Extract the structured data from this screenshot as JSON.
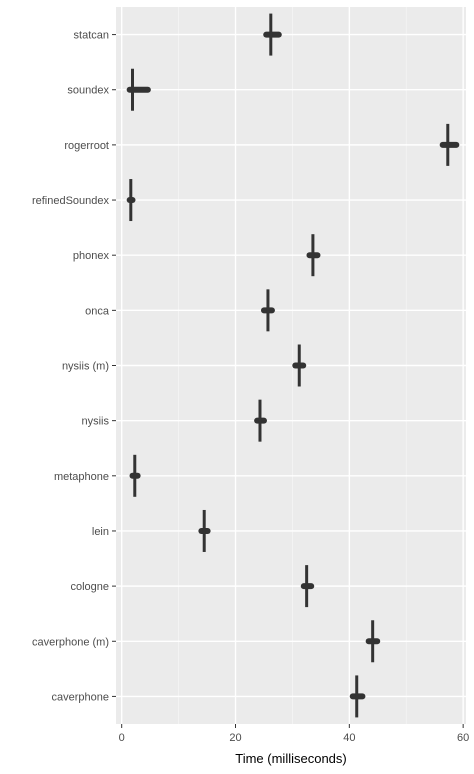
{
  "chart_data": {
    "type": "boxplot",
    "title": "",
    "xlabel": "Time (milliseconds)",
    "ylabel": "",
    "xlim": [
      -1,
      60.5
    ],
    "x_ticks": [
      0,
      20,
      40,
      60
    ],
    "x_tick_labels": [
      "0",
      "20",
      "40",
      "60"
    ],
    "grid": true,
    "legend": "none",
    "categories": [
      "statcan",
      "soundex",
      "rogerroot",
      "refinedSoundex",
      "phonex",
      "onca",
      "nysiis (m)",
      "nysiis",
      "metaphone",
      "lein",
      "cologne",
      "caverphone (m)",
      "caverphone"
    ],
    "whisker_low": [
      26.2,
      1.6,
      57.2,
      1.6,
      33.6,
      25.6,
      31.2,
      24.2,
      2.2,
      14.5,
      32.4,
      44.1,
      41.3
    ],
    "q1": [
      25.4,
      1.4,
      56.4,
      1.4,
      33.0,
      25.0,
      30.5,
      23.8,
      1.9,
      14.0,
      32.0,
      43.4,
      40.6
    ],
    "median": [
      26.2,
      1.9,
      57.3,
      1.6,
      33.6,
      25.7,
      31.2,
      24.3,
      2.3,
      14.5,
      32.5,
      44.1,
      41.3
    ],
    "q3": [
      27.6,
      4.6,
      58.8,
      1.9,
      34.4,
      26.4,
      31.9,
      25.0,
      2.8,
      15.1,
      33.3,
      44.9,
      42.3
    ],
    "whisker_high": [
      26.2,
      1.6,
      57.2,
      1.6,
      33.6,
      25.6,
      31.2,
      24.2,
      2.2,
      14.5,
      32.4,
      44.1,
      41.3
    ],
    "colors": {
      "panel": "#ebebeb",
      "grid_major": "#ffffff",
      "grid_minor": "#f5f5f5",
      "mark": "#333333",
      "text": "#4d4d4d"
    }
  }
}
